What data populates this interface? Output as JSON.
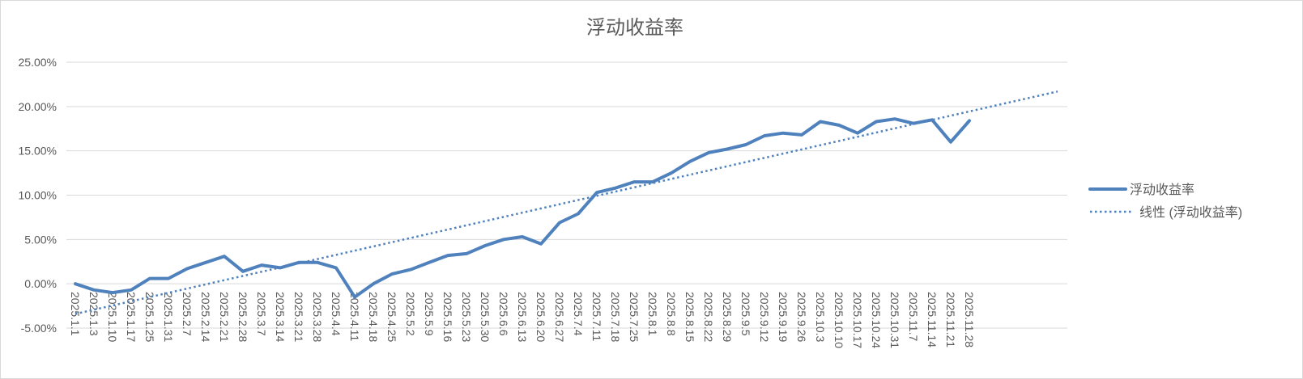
{
  "chart_data": {
    "type": "line",
    "title": "浮动收益率",
    "xlabel": "",
    "ylabel": "",
    "ylim": [
      -5,
      25
    ],
    "y_ticks": [
      "25.00%",
      "20.00%",
      "15.00%",
      "10.00%",
      "5.00%",
      "0.00%",
      "-5.00%"
    ],
    "y_tick_values": [
      25,
      20,
      15,
      10,
      5,
      0,
      -5
    ],
    "grid": true,
    "legend_position": "right",
    "categories": [
      "2025.1.1",
      "2025.1.3",
      "2025.1.10",
      "2025.1.17",
      "2025.1.25",
      "2025.1.31",
      "2025.2.7",
      "2025.2.14",
      "2025.2.21",
      "2025.2.28",
      "2025.3.7",
      "2025.3.14",
      "2025.3.21",
      "2025.3.28",
      "2025.4.4",
      "2025.4.11",
      "2025.4.18",
      "2025.4.25",
      "2025.5.2",
      "2025.5.9",
      "2025.5.16",
      "2025.5.23",
      "2025.5.30",
      "2025.6.6",
      "2025.6.13",
      "2025.6.20",
      "2025.6.27",
      "2025.7.4",
      "2025.7.11",
      "2025.7.18",
      "2025.7.25",
      "2025.8.1",
      "2025.8.8",
      "2025.8.15",
      "2025.8.22",
      "2025.8.29",
      "2025.9.5",
      "2025.9.12",
      "2025.9.19",
      "2025.9.26",
      "2025.10.3",
      "2025.10.10",
      "2025.10.17",
      "2025.10.24",
      "2025.10.31",
      "2025.11.7",
      "2025.11.14",
      "2025.11.21",
      "2025.11.28"
    ],
    "series": [
      {
        "name": "浮动收益率",
        "color": "#4f81bd",
        "style": "solid",
        "values": [
          0.0,
          -0.7,
          -1.0,
          -0.7,
          0.6,
          0.6,
          1.7,
          2.4,
          3.1,
          1.4,
          2.1,
          1.8,
          2.4,
          2.4,
          1.8,
          -1.5,
          0.0,
          1.1,
          1.6,
          2.4,
          3.2,
          3.4,
          4.3,
          5.0,
          5.3,
          4.5,
          6.9,
          7.9,
          10.3,
          10.8,
          11.5,
          11.5,
          12.5,
          13.8,
          14.8,
          15.2,
          15.7,
          16.7,
          17.0,
          16.8,
          18.3,
          17.9,
          17.0,
          18.3,
          18.6,
          18.1,
          18.5,
          16.0,
          18.4
        ]
      },
      {
        "name": "线性 (浮动收益率)",
        "color": "#4f81bd",
        "style": "dotted",
        "values_linear_endpoints": [
          -3.4,
          21.7
        ]
      }
    ]
  }
}
